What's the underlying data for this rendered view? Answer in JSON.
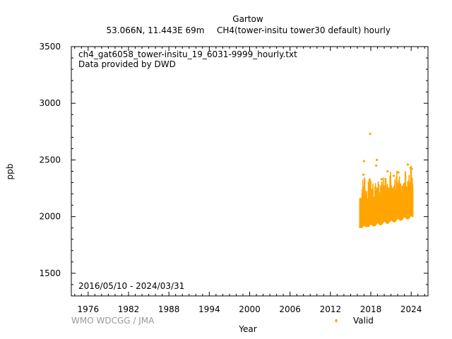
{
  "header": {
    "station": "Gartow",
    "location": "53.066N, 11.443E 69m",
    "parameter": "CH4(tower-insitu tower30 default) hourly"
  },
  "annotations": {
    "filename": "ch4_gat6058_tower-insitu_19_6031-9999_hourly.txt",
    "provider": "Data provided by DWD",
    "period": "2016/05/10 - 2024/03/31",
    "credit": "WMO WDCGG / JMA"
  },
  "colors": {
    "valid": "#FFA500",
    "credit": "#999999"
  },
  "chart_data": {
    "type": "scatter",
    "title": "Gartow",
    "subtitle": "53.066N, 11.443E 69m    CH4(tower-insitu tower30 default) hourly",
    "xlabel": "Year",
    "ylabel": "ppb",
    "xlim": [
      1973.5,
      2026.5
    ],
    "ylim": [
      1300,
      3500
    ],
    "x_ticks": [
      1976,
      1982,
      1988,
      1994,
      2000,
      2006,
      2012,
      2018,
      2024
    ],
    "y_ticks": [
      1500,
      2000,
      2500,
      3000,
      3500
    ],
    "legend": {
      "position": "bottom-right",
      "entries": [
        {
          "name": "Valid",
          "color": "#FFA500"
        }
      ]
    },
    "grid": false,
    "series": [
      {
        "name": "Valid",
        "color": "#FFA500",
        "baseline": [
          {
            "x": 2016.4,
            "y": 1990
          },
          {
            "x": 2017.0,
            "y": 2000
          },
          {
            "x": 2018.0,
            "y": 2010
          },
          {
            "x": 2019.0,
            "y": 2020
          },
          {
            "x": 2020.0,
            "y": 2035
          },
          {
            "x": 2021.0,
            "y": 2045
          },
          {
            "x": 2022.0,
            "y": 2060
          },
          {
            "x": 2023.0,
            "y": 2075
          },
          {
            "x": 2024.25,
            "y": 2085
          }
        ],
        "x_range": [
          2016.36,
          2024.25
        ],
        "typical_min": 1900,
        "outliers": [
          {
            "x": 2017.9,
            "y": 2730
          },
          {
            "x": 2017.0,
            "y": 2490
          },
          {
            "x": 2016.9,
            "y": 2370
          },
          {
            "x": 2018.9,
            "y": 2500
          },
          {
            "x": 2018.8,
            "y": 2450
          },
          {
            "x": 2020.5,
            "y": 2400
          },
          {
            "x": 2022.1,
            "y": 2390
          },
          {
            "x": 2023.5,
            "y": 2460
          },
          {
            "x": 2023.9,
            "y": 2430
          },
          {
            "x": 2024.1,
            "y": 2420
          },
          {
            "x": 2019.6,
            "y": 2330
          },
          {
            "x": 2021.4,
            "y": 2360
          }
        ]
      }
    ]
  }
}
